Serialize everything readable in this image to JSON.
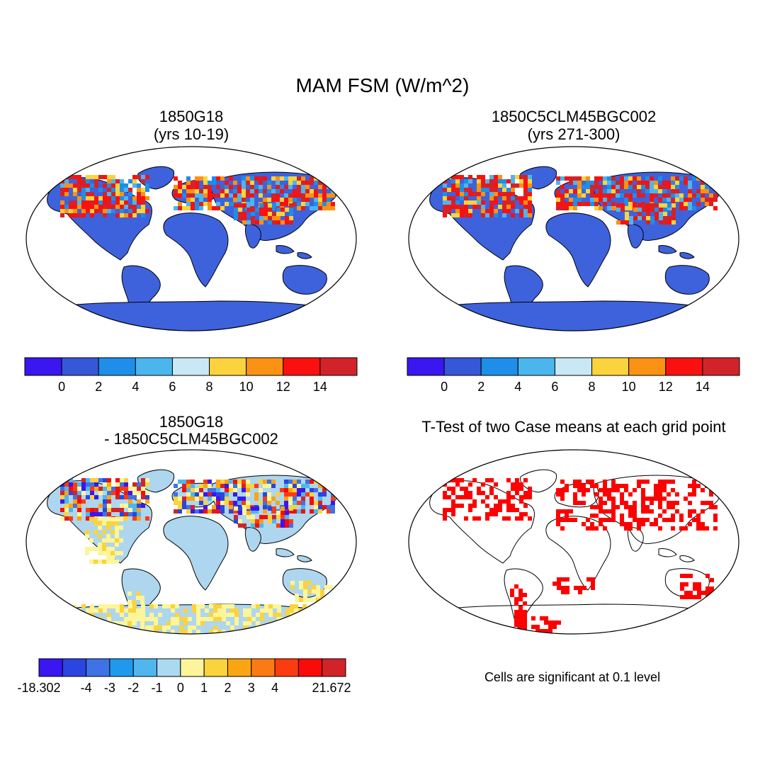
{
  "figure": {
    "title": "MAM FSM (W/m^2)"
  },
  "panels": [
    {
      "title_line1": "1850G18",
      "title_line2": "(yrs 10-19)"
    },
    {
      "title_line1": "1850C5CLM45BGC002",
      "title_line2": "(yrs 271-300)"
    },
    {
      "title_line1": "1850G18",
      "title_line2": "- 1850C5CLM45BGC002"
    },
    {
      "title_line1": "T-Test of two Case means at each grid point",
      "title_line2": ""
    }
  ],
  "colorbar_abs": {
    "colors": [
      "#3a16f0",
      "#3458d8",
      "#1e8ee8",
      "#4bb6ee",
      "#c9e8f6",
      "#fbd33c",
      "#fb9214",
      "#fb1010",
      "#d2232a"
    ],
    "labels": [
      "0",
      "2",
      "4",
      "6",
      "8",
      "10",
      "12",
      "14"
    ]
  },
  "colorbar_diff": {
    "colors": [
      "#3a16f0",
      "#2b45e0",
      "#3f72e6",
      "#1f99ee",
      "#4fb6ee",
      "#acd9f2",
      "#fdf59a",
      "#fbd33c",
      "#fba414",
      "#fb7a14",
      "#fb3c10",
      "#fb0a0a",
      "#d2232a"
    ],
    "labels": [
      "-18.302",
      "-4",
      "-3",
      "-2",
      "-1",
      "0",
      "1",
      "2",
      "3",
      "4",
      "21.672"
    ]
  },
  "significance_note": "Cells are significant at 0.1 level",
  "colors": {
    "land_abs": "#3e62dc",
    "land_diff": "#aed6ee",
    "antarctica_diff": "#fdf59a",
    "signif": "#ff0000"
  }
}
